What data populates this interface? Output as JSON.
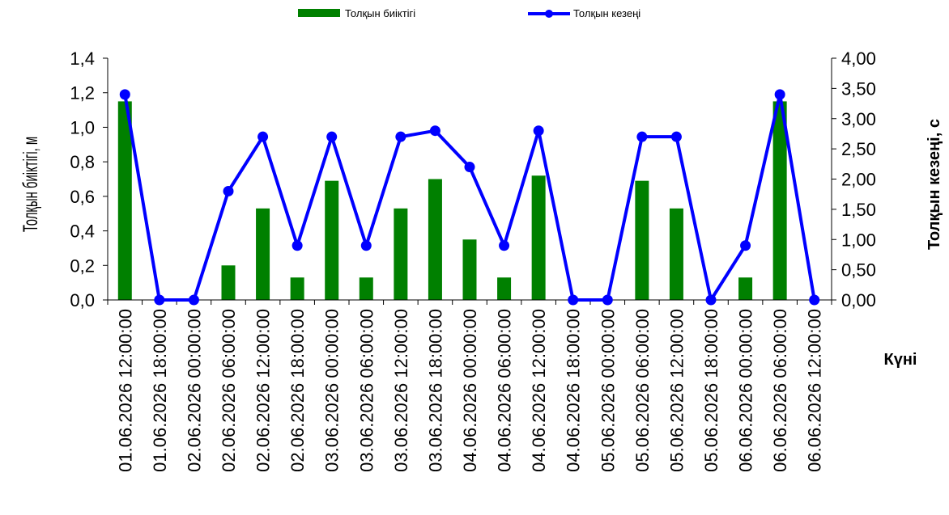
{
  "chart_data": {
    "type": "bar+line",
    "legend": {
      "bar_label": "Толқын биіктігі",
      "line_label": "Толқын кезеңі",
      "placement": "top-center"
    },
    "categories": [
      "01.06.2026 12:00:00",
      "01.06.2026 18:00:00",
      "02.06.2026 00:00:00",
      "02.06.2026 06:00:00",
      "02.06.2026 12:00:00",
      "02.06.2026 18:00:00",
      "03.06.2026 00:00:00",
      "03.06.2026 06:00:00",
      "03.06.2026 12:00:00",
      "03.06.2026 18:00:00",
      "04.06.2026 00:00:00",
      "04.06.2026 06:00:00",
      "04.06.2026 12:00:00",
      "04.06.2026 18:00:00",
      "05.06.2026 00:00:00",
      "05.06.2026 06:00:00",
      "05.06.2026 12:00:00",
      "05.06.2026 18:00:00",
      "06.06.2026 00:00:00",
      "06.06.2026 06:00:00",
      "06.06.2026 12:00:00"
    ],
    "series": [
      {
        "name": "Толқын биіктігі",
        "type": "bar",
        "axis": "left",
        "color": "#008000",
        "values": [
          1.15,
          0,
          0,
          0.2,
          0.53,
          0.13,
          0.69,
          0.13,
          0.53,
          0.7,
          0.35,
          0.13,
          0.72,
          0,
          0,
          0.69,
          0.53,
          0,
          0.13,
          1.15,
          0
        ]
      },
      {
        "name": "Толқын кезеңі",
        "type": "line",
        "axis": "right",
        "color": "#0000ff",
        "values": [
          3.4,
          0,
          0,
          1.8,
          2.7,
          0.9,
          2.7,
          0.9,
          2.7,
          2.8,
          2.2,
          0.9,
          2.8,
          0,
          0,
          2.7,
          2.7,
          0,
          0.9,
          3.4,
          0
        ]
      }
    ],
    "y_left": {
      "label": "Толқын биіктігі, м",
      "range": [
        0,
        1.4
      ],
      "ticks": [
        "0,0",
        "0,2",
        "0,4",
        "0,6",
        "0,8",
        "1,0",
        "1,2",
        "1,4"
      ]
    },
    "y_right": {
      "label": "Толқын кезеңі, с",
      "range": [
        0,
        4
      ],
      "ticks": [
        "0,00",
        "0,50",
        "1,00",
        "1,50",
        "2,00",
        "2,50",
        "3,00",
        "3,50",
        "4,00"
      ]
    },
    "x_label": "Күні",
    "grid": false
  }
}
